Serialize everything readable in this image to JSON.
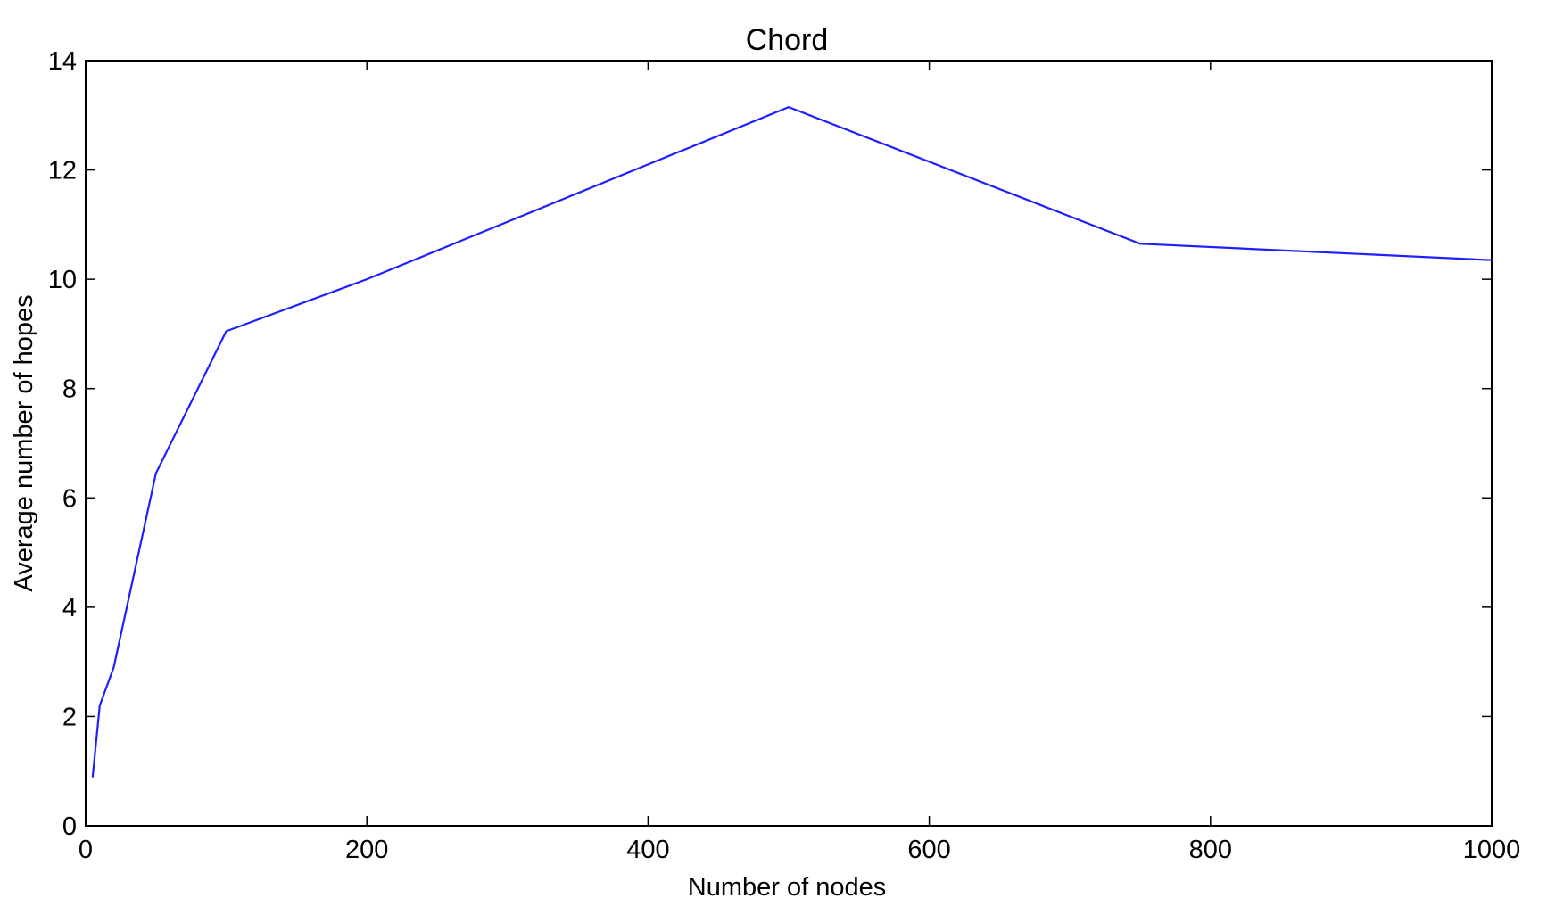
{
  "chart_data": {
    "type": "line",
    "title": "Chord",
    "xlabel": "Number of nodes",
    "ylabel": "Average number of hopes",
    "xlim": [
      0,
      1000
    ],
    "ylim": [
      0,
      14
    ],
    "xticks": [
      0,
      200,
      400,
      600,
      800,
      1000
    ],
    "yticks": [
      0,
      2,
      4,
      6,
      8,
      10,
      12,
      14
    ],
    "grid": false,
    "series": [
      {
        "color": "#1f1fff",
        "x": [
          5,
          10,
          20,
          50,
          100,
          200,
          500,
          750,
          1000
        ],
        "y": [
          0.9,
          2.2,
          2.9,
          6.45,
          9.05,
          10.0,
          13.15,
          10.65,
          10.35
        ]
      }
    ]
  }
}
